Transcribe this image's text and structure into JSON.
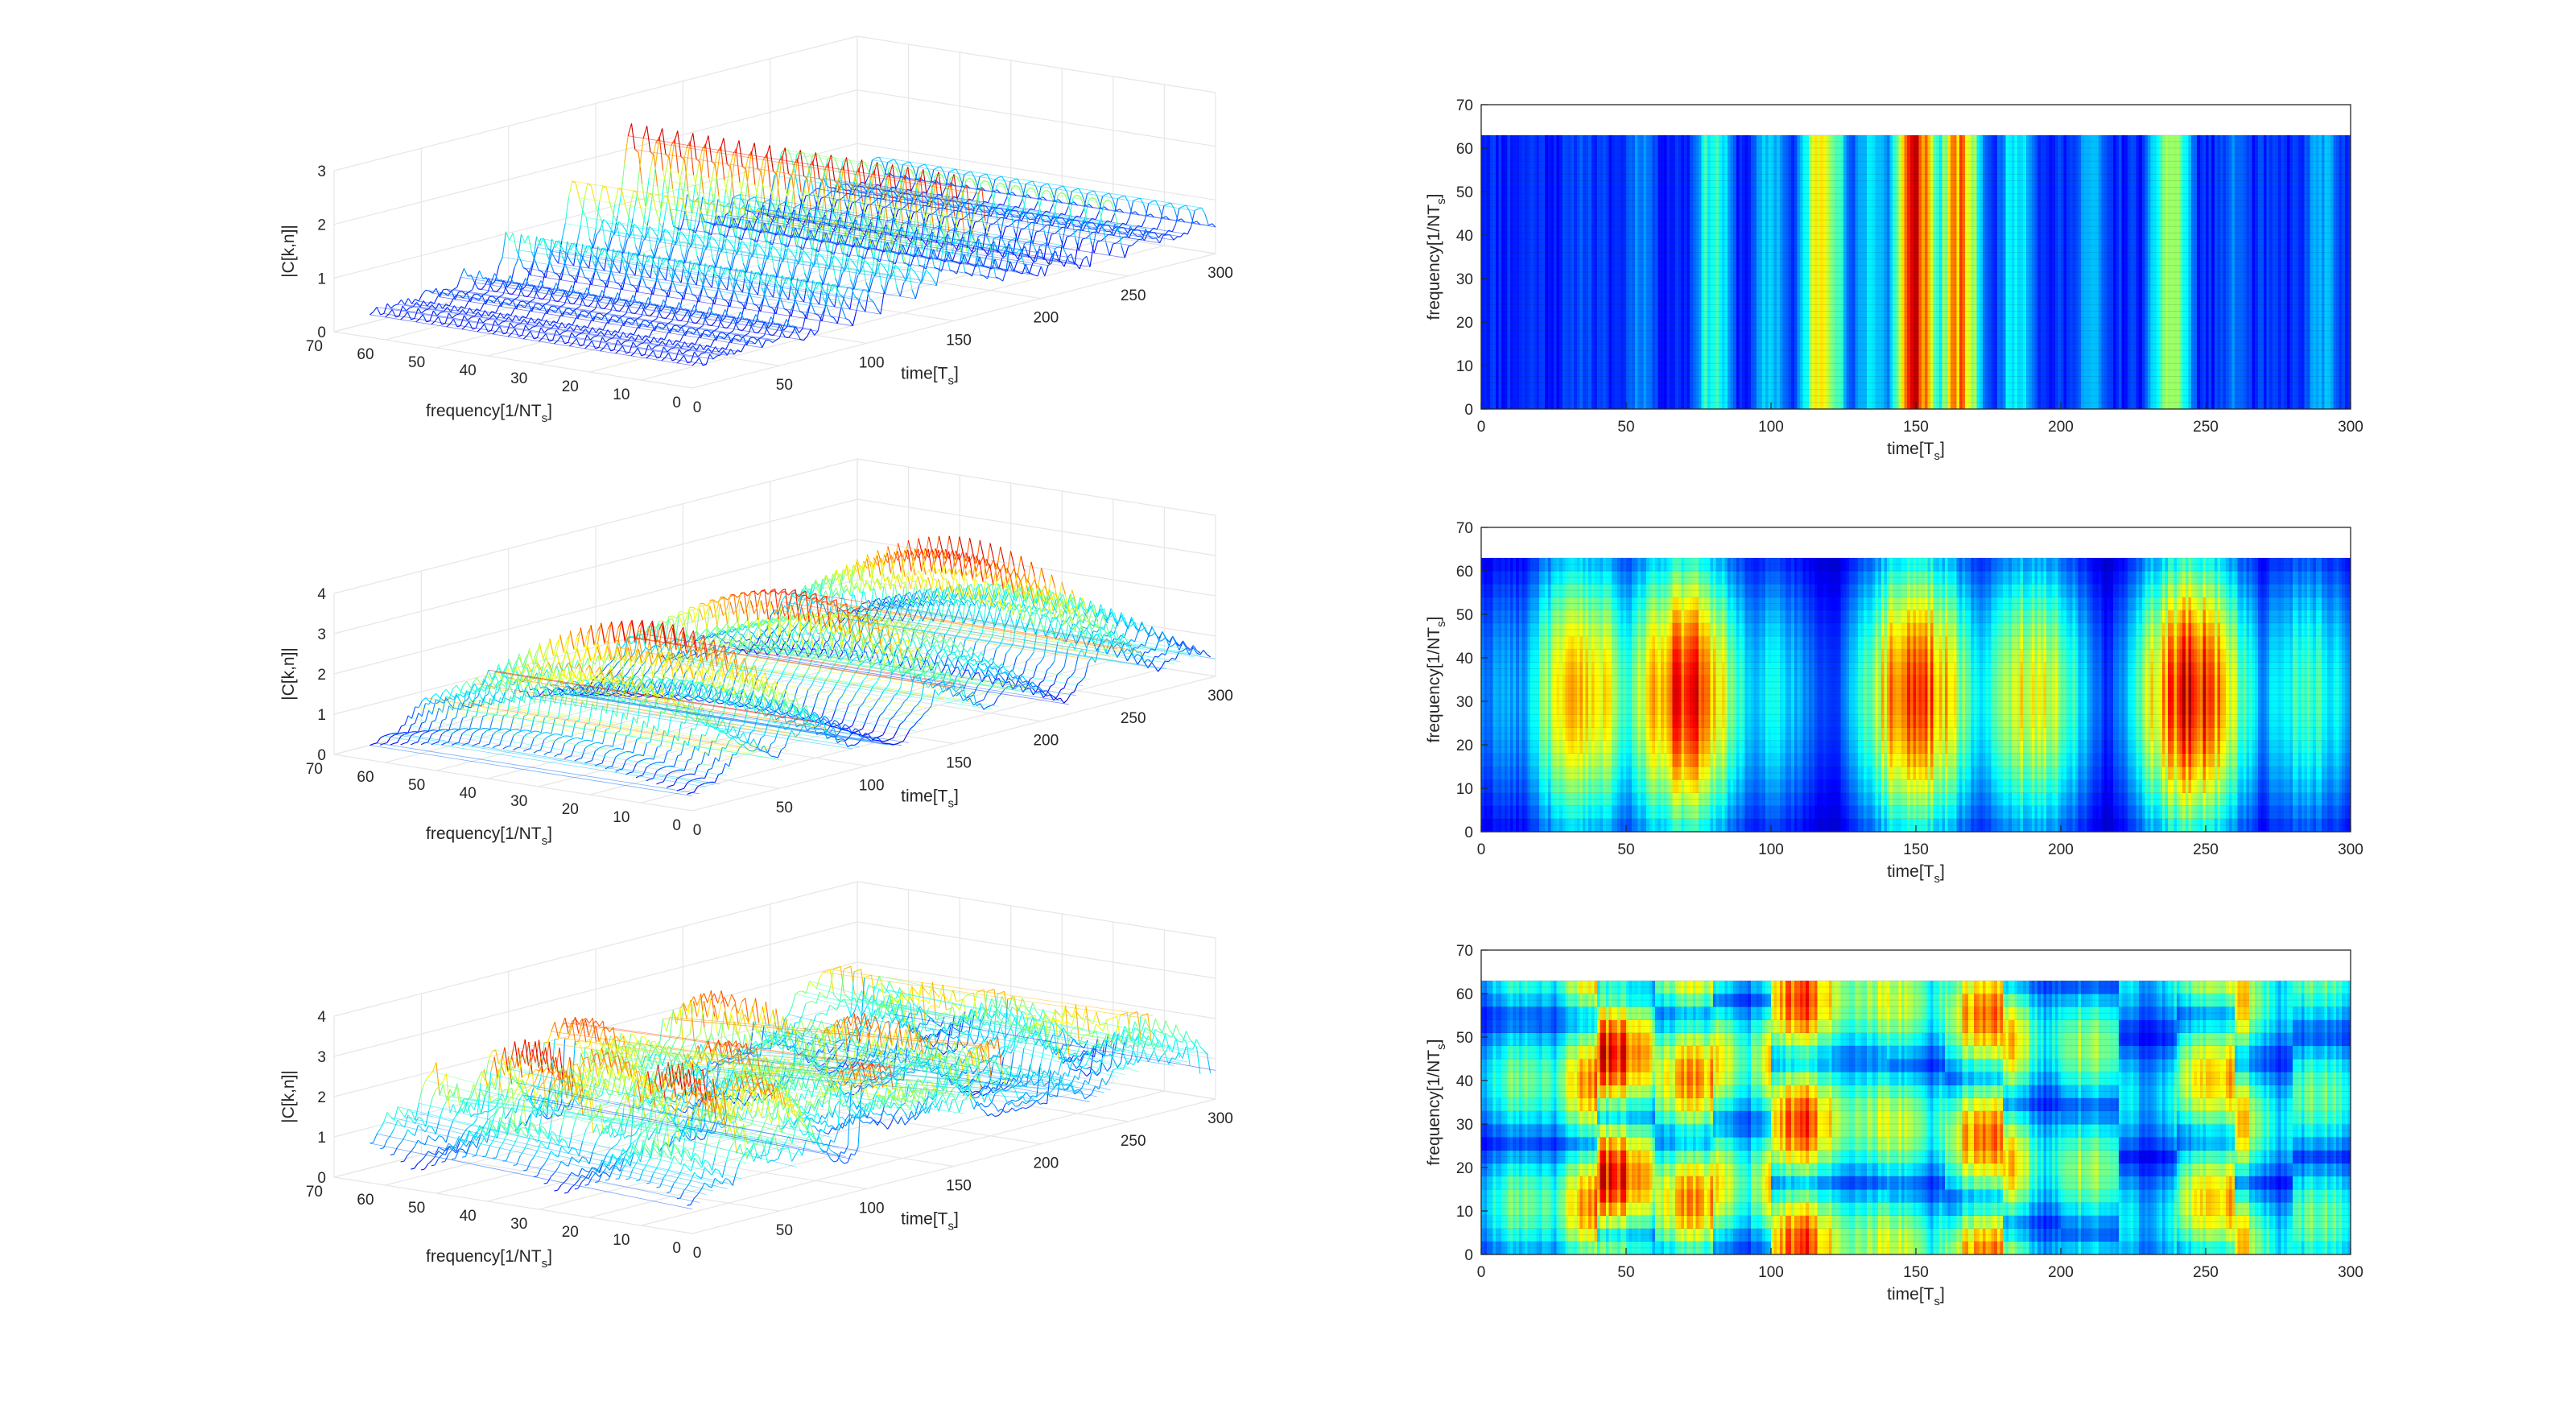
{
  "chart_data": [
    {
      "type": "waterfall-3d",
      "panel": "row1-left",
      "xlabel_main": "frequency[1/NT",
      "xlabel_sub": "s",
      "xlabel_end": "]",
      "ylabel_main": "time[T",
      "ylabel_sub": "s",
      "ylabel_end": "]",
      "zlabel": "|C[k,n]|",
      "freq_ticks": [
        "0",
        "10",
        "20",
        "30",
        "40",
        "50",
        "60",
        "70"
      ],
      "time_ticks": [
        "0",
        "50",
        "100",
        "150",
        "200",
        "250",
        "300"
      ],
      "z_ticks": [
        "0",
        "1",
        "2",
        "3"
      ],
      "freq_range": [
        0,
        70
      ],
      "time_range": [
        0,
        300
      ],
      "zlim": [
        0,
        3
      ],
      "grid": true,
      "colormap": "jet",
      "time_profile_peaks": [
        {
          "t": 2,
          "v": 0.55
        },
        {
          "t": 18,
          "v": 0.6
        },
        {
          "t": 35,
          "v": 0.7
        },
        {
          "t": 55,
          "v": 0.9
        },
        {
          "t": 80,
          "v": 1.4
        },
        {
          "t": 100,
          "v": 1.1
        },
        {
          "t": 118,
          "v": 2.2
        },
        {
          "t": 135,
          "v": 1.2
        },
        {
          "t": 150,
          "v": 2.9
        },
        {
          "t": 165,
          "v": 2.4
        },
        {
          "t": 185,
          "v": 1.3
        },
        {
          "t": 210,
          "v": 1.0
        },
        {
          "t": 238,
          "v": 1.8
        },
        {
          "t": 260,
          "v": 0.8
        },
        {
          "t": 290,
          "v": 1.0
        }
      ],
      "freq_modulation": "none"
    },
    {
      "type": "heatmap",
      "panel": "row1-right",
      "xlabel_main": "time[T",
      "xlabel_sub": "s",
      "xlabel_end": "]",
      "ylabel_main": "frequency[1/NT",
      "ylabel_sub": "s",
      "ylabel_end": "]",
      "x_ticks": [
        "0",
        "50",
        "100",
        "150",
        "200",
        "250",
        "300"
      ],
      "y_ticks": [
        "0",
        "10",
        "20",
        "30",
        "40",
        "50",
        "60",
        "70"
      ],
      "xlim": [
        0,
        300
      ],
      "ylim": [
        0,
        70
      ],
      "data_extent": {
        "freq_max": 63
      },
      "colormap": "jet",
      "time_profile_peaks": [
        {
          "t": 2,
          "v": 0.55
        },
        {
          "t": 18,
          "v": 0.6
        },
        {
          "t": 35,
          "v": 0.7
        },
        {
          "t": 55,
          "v": 0.9
        },
        {
          "t": 80,
          "v": 1.4
        },
        {
          "t": 100,
          "v": 1.1
        },
        {
          "t": 118,
          "v": 2.2
        },
        {
          "t": 135,
          "v": 1.2
        },
        {
          "t": 150,
          "v": 2.9
        },
        {
          "t": 165,
          "v": 2.4
        },
        {
          "t": 185,
          "v": 1.3
        },
        {
          "t": 210,
          "v": 1.0
        },
        {
          "t": 238,
          "v": 1.8
        },
        {
          "t": 260,
          "v": 0.8
        },
        {
          "t": 290,
          "v": 1.0
        }
      ],
      "freq_modulation": "none"
    },
    {
      "type": "waterfall-3d",
      "panel": "row2-left",
      "xlabel_main": "frequency[1/NT",
      "xlabel_sub": "s",
      "xlabel_end": "]",
      "ylabel_main": "time[T",
      "ylabel_sub": "s",
      "ylabel_end": "]",
      "zlabel": "|C[k,n]|",
      "freq_ticks": [
        "0",
        "10",
        "20",
        "30",
        "40",
        "50",
        "60",
        "70"
      ],
      "time_ticks": [
        "0",
        "50",
        "100",
        "150",
        "200",
        "250",
        "300"
      ],
      "z_ticks": [
        "0",
        "1",
        "2",
        "3",
        "4"
      ],
      "freq_range": [
        0,
        70
      ],
      "time_range": [
        0,
        300
      ],
      "zlim": [
        0,
        4
      ],
      "grid": true,
      "colormap": "jet",
      "time_profile_peaks": [
        {
          "t": 10,
          "v": 1.2
        },
        {
          "t": 35,
          "v": 2.8
        },
        {
          "t": 70,
          "v": 3.5
        },
        {
          "t": 100,
          "v": 1.5
        },
        {
          "t": 150,
          "v": 3.4
        },
        {
          "t": 190,
          "v": 2.6
        },
        {
          "t": 245,
          "v": 3.6
        },
        {
          "t": 285,
          "v": 1.8
        }
      ],
      "freq_modulation": "arch"
    },
    {
      "type": "heatmap",
      "panel": "row2-right",
      "xlabel_main": "time[T",
      "xlabel_sub": "s",
      "xlabel_end": "]",
      "ylabel_main": "frequency[1/NT",
      "ylabel_sub": "s",
      "ylabel_end": "]",
      "x_ticks": [
        "0",
        "50",
        "100",
        "150",
        "200",
        "250",
        "300"
      ],
      "y_ticks": [
        "0",
        "10",
        "20",
        "30",
        "40",
        "50",
        "60",
        "70"
      ],
      "xlim": [
        0,
        300
      ],
      "ylim": [
        0,
        70
      ],
      "data_extent": {
        "freq_max": 63
      },
      "colormap": "jet",
      "time_profile_peaks": [
        {
          "t": 10,
          "v": 1.2
        },
        {
          "t": 35,
          "v": 2.8
        },
        {
          "t": 70,
          "v": 3.5
        },
        {
          "t": 100,
          "v": 1.5
        },
        {
          "t": 150,
          "v": 3.4
        },
        {
          "t": 190,
          "v": 2.6
        },
        {
          "t": 245,
          "v": 3.6
        },
        {
          "t": 285,
          "v": 1.8
        }
      ],
      "freq_modulation": "arch"
    },
    {
      "type": "waterfall-3d",
      "panel": "row3-left",
      "xlabel_main": "frequency[1/NT",
      "xlabel_sub": "s",
      "xlabel_end": "]",
      "ylabel_main": "time[T",
      "ylabel_sub": "s",
      "ylabel_end": "]",
      "zlabel": "|C[k,n]|",
      "freq_ticks": [
        "0",
        "10",
        "20",
        "30",
        "40",
        "50",
        "60",
        "70"
      ],
      "time_ticks": [
        "0",
        "50",
        "100",
        "150",
        "200",
        "250",
        "300"
      ],
      "z_ticks": [
        "0",
        "1",
        "2",
        "3",
        "4"
      ],
      "freq_range": [
        0,
        70
      ],
      "time_range": [
        0,
        300
      ],
      "zlim": [
        0,
        4
      ],
      "grid": true,
      "colormap": "jet",
      "time_profile_peaks": [
        {
          "t": 15,
          "v": 2.0
        },
        {
          "t": 45,
          "v": 3.6
        },
        {
          "t": 75,
          "v": 3.0
        },
        {
          "t": 110,
          "v": 3.3
        },
        {
          "t": 140,
          "v": 2.4
        },
        {
          "t": 175,
          "v": 3.1
        },
        {
          "t": 210,
          "v": 2.2
        },
        {
          "t": 255,
          "v": 3.0
        },
        {
          "t": 290,
          "v": 2.0
        }
      ],
      "freq_modulation": "random"
    },
    {
      "type": "heatmap",
      "panel": "row3-right",
      "xlabel_main": "time[T",
      "xlabel_sub": "s",
      "xlabel_end": "]",
      "ylabel_main": "frequency[1/NT",
      "ylabel_sub": "s",
      "ylabel_end": "]",
      "x_ticks": [
        "0",
        "50",
        "100",
        "150",
        "200",
        "250",
        "300"
      ],
      "y_ticks": [
        "0",
        "10",
        "20",
        "30",
        "40",
        "50",
        "60",
        "70"
      ],
      "xlim": [
        0,
        300
      ],
      "ylim": [
        0,
        70
      ],
      "data_extent": {
        "freq_max": 63
      },
      "colormap": "jet",
      "time_profile_peaks": [
        {
          "t": 15,
          "v": 2.0
        },
        {
          "t": 45,
          "v": 3.6
        },
        {
          "t": 75,
          "v": 3.0
        },
        {
          "t": 110,
          "v": 3.3
        },
        {
          "t": 140,
          "v": 2.4
        },
        {
          "t": 175,
          "v": 3.1
        },
        {
          "t": 210,
          "v": 2.2
        },
        {
          "t": 255,
          "v": 3.0
        },
        {
          "t": 290,
          "v": 2.0
        }
      ],
      "freq_modulation": "random"
    }
  ]
}
